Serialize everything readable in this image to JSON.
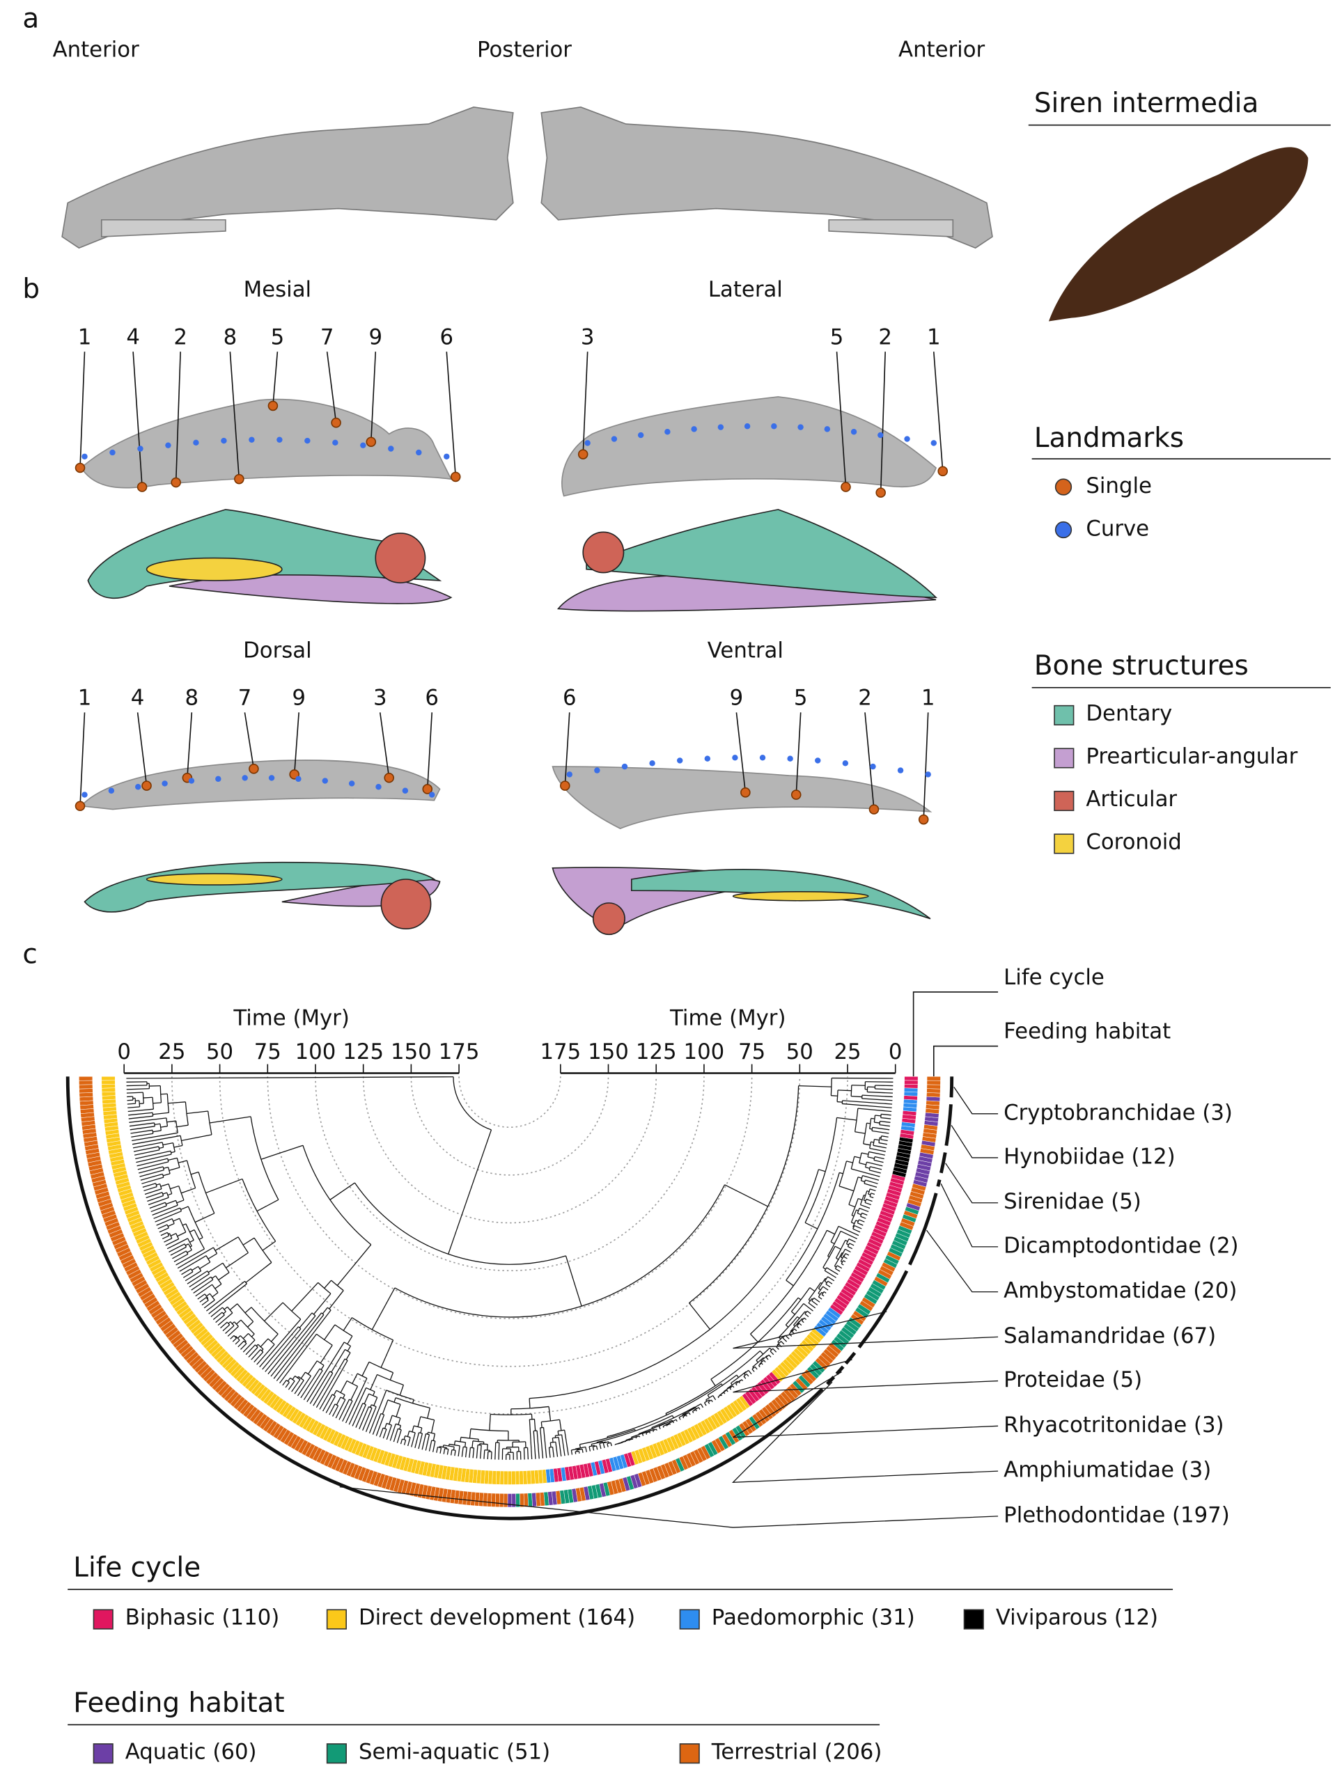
{
  "panels": {
    "a": "a",
    "b": "b",
    "c": "c"
  },
  "panel_a": {
    "labels": [
      "Anterior",
      "Posterior",
      "Anterior"
    ]
  },
  "species": "Siren intermedia",
  "panel_b": {
    "views": [
      {
        "title": "Mesial",
        "landmarks": [
          "1",
          "4",
          "2",
          "8",
          "5",
          "7",
          "9",
          "6"
        ]
      },
      {
        "title": "Lateral",
        "landmarks": [
          "3",
          "5",
          "2",
          "1"
        ]
      },
      {
        "title": "Dorsal",
        "landmarks": [
          "1",
          "4",
          "8",
          "7",
          "9",
          "3",
          "6"
        ]
      },
      {
        "title": "Ventral",
        "landmarks": [
          "6",
          "9",
          "5",
          "2",
          "1"
        ]
      }
    ]
  },
  "landmarks": {
    "title": "Landmarks",
    "items": [
      {
        "label": "Single",
        "color": "#d4631c"
      },
      {
        "label": "Curve",
        "color": "#3a6fe8"
      }
    ]
  },
  "bone_structures": {
    "title": "Bone structures",
    "items": [
      {
        "label": "Dentary",
        "color": "#6fc0ab"
      },
      {
        "label": "Prearticular-angular",
        "color": "#c49fd1"
      },
      {
        "label": "Articular",
        "color": "#cf6457"
      },
      {
        "label": "Coronoid",
        "color": "#f4d23f"
      }
    ]
  },
  "panel_c": {
    "time_axes": [
      {
        "label": "Time (Myr)",
        "ticks": [
          0,
          25,
          50,
          75,
          100,
          125,
          150,
          175
        ]
      },
      {
        "label": "Time (Myr)",
        "ticks": [
          175,
          150,
          125,
          100,
          75,
          50,
          25,
          0
        ]
      }
    ],
    "ring_labels": [
      "Life cycle",
      "Feeding habitat"
    ],
    "families": [
      "Cryptobranchidae (3)",
      "Hynobiidae (12)",
      "Sirenidae (5)",
      "Dicamptodontidae (2)",
      "Ambystomatidae (20)",
      "Salamandridae (67)",
      "Proteidae (5)",
      "Rhyacotritonidae (3)",
      "Amphiumatidae (3)",
      "Plethodontidae (197)"
    ]
  },
  "legends": [
    {
      "title": "Life cycle",
      "items": [
        {
          "label": "Biphasic (110)",
          "color": "#e0175f"
        },
        {
          "label": "Direct development (164)",
          "color": "#fbc81a"
        },
        {
          "label": "Paedomorphic (31)",
          "color": "#2e8df0"
        },
        {
          "label": "Viviparous (12)",
          "color": "#000000"
        }
      ]
    },
    {
      "title": "Feeding habitat",
      "items": [
        {
          "label": "Aquatic (60)",
          "color": "#6c3fa6"
        },
        {
          "label": "Semi-aquatic (51)",
          "color": "#129a76"
        },
        {
          "label": "Terrestrial (206)",
          "color": "#dd6612"
        }
      ]
    }
  ]
}
